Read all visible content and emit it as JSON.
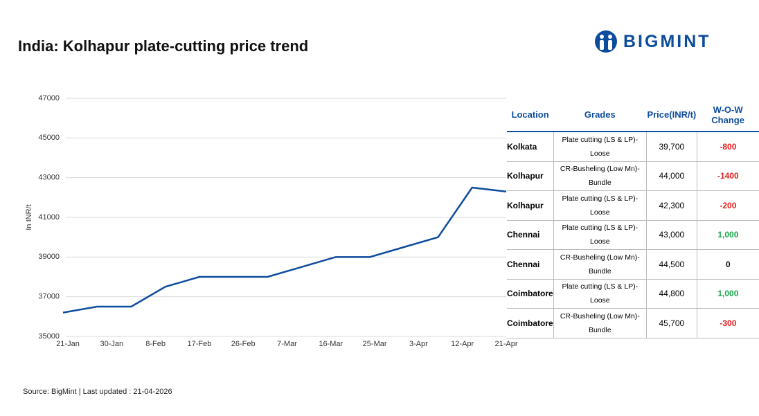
{
  "header": {
    "title": "India: Kolhapur plate-cutting price trend",
    "logo": "BIGMINT"
  },
  "chart_data": {
    "type": "line",
    "y_label": "In INR/t",
    "x": [
      "20-Jan",
      "27-Jan",
      "3-Feb",
      "10-Feb",
      "17-Feb",
      "24-Feb",
      "3-Mar",
      "10-Mar",
      "17-Mar",
      "24-Mar",
      "31-Mar",
      "7-Apr",
      "14-Apr",
      "21-Apr"
    ],
    "values": [
      36200,
      36500,
      36500,
      37500,
      38000,
      38000,
      38000,
      38500,
      39000,
      39000,
      39500,
      40000,
      42500,
      42300
    ],
    "color": "#0d4c9c",
    "xlim": [
      "21-Jan",
      "21-Apr"
    ],
    "xticks": [
      "21-Jan",
      "30-Jan",
      "8-Feb",
      "17-Feb",
      "26-Feb",
      "7-Mar",
      "16-Mar",
      "25-Mar",
      "3-Apr",
      "12-Apr",
      "21-Apr"
    ],
    "ylim": [
      35000,
      47000
    ],
    "yticks": [
      35000,
      37000,
      39000,
      41000,
      43000,
      45000,
      47000
    ],
    "grid": true
  },
  "table": {
    "columns": [
      "Location",
      "Grades",
      "Price(INR/t)",
      "W-O-W Change"
    ],
    "rows": [
      [
        "Kolkata",
        "Plate cutting (LS & LP)-Loose",
        "39,700",
        "-800"
      ],
      [
        "Kolhapur",
        "CR-Busheling (Low Mn)-Bundle",
        "44,000",
        "-1400"
      ],
      [
        "Kolhapur",
        "Plate cutting (LS & LP)-Loose",
        "42,300",
        "-200"
      ],
      [
        "Chennai",
        "Plate cutting (LS & LP)-Loose",
        "43,000",
        "1,000"
      ],
      [
        "Chennai",
        "CR-Busheling (Low Mn)-Bundle",
        "44,500",
        "0"
      ],
      [
        "Coimbatore",
        "Plate cutting (LS & LP)-Loose",
        "44,800",
        "1,000"
      ],
      [
        "Coimbatore",
        "CR-Busheling (Low Mn)-Bundle",
        "45,700",
        "-300"
      ]
    ]
  },
  "footer": {
    "source": "Source: BigMint | Last updated : 21-04-2026"
  }
}
